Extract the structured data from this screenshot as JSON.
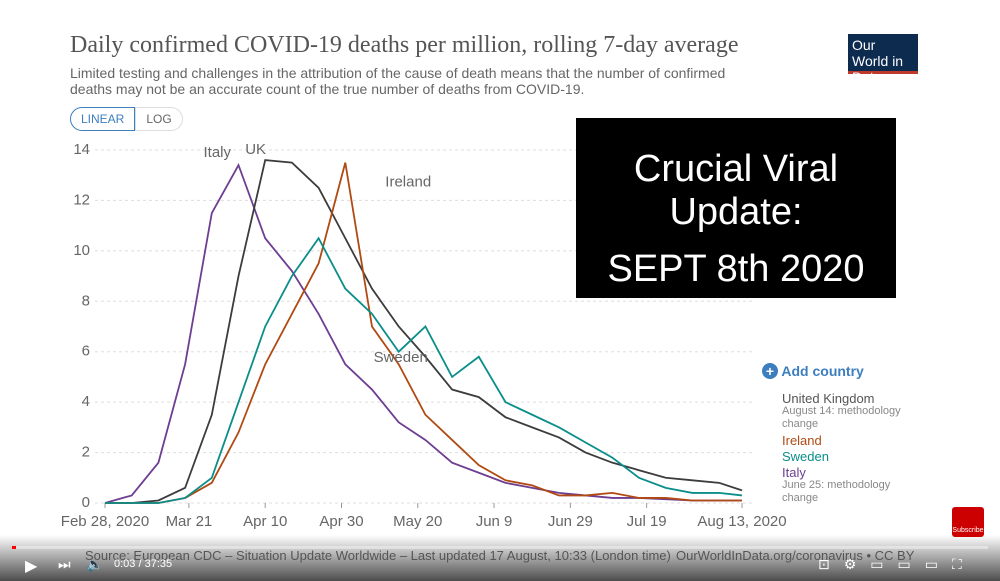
{
  "chart_data": {
    "type": "line",
    "title": "Daily confirmed COVID-19 deaths per million, rolling 7-day average",
    "subtitle": "Limited testing and challenges in the attribution of the cause of death means that the number of confirmed deaths may not be an accurate count of the true number of deaths from COVID-19.",
    "scale_buttons": [
      "LINEAR",
      "LOG"
    ],
    "add_country": "Add country",
    "x": [
      "2020-02-28",
      "2020-03-06",
      "2020-03-13",
      "2020-03-20",
      "2020-03-27",
      "2020-04-03",
      "2020-04-10",
      "2020-04-17",
      "2020-04-24",
      "2020-05-01",
      "2020-05-08",
      "2020-05-15",
      "2020-05-22",
      "2020-05-29",
      "2020-06-05",
      "2020-06-12",
      "2020-06-19",
      "2020-06-26",
      "2020-07-03",
      "2020-07-10",
      "2020-07-17",
      "2020-07-24",
      "2020-07-31",
      "2020-08-07",
      "2020-08-13"
    ],
    "series": [
      {
        "name": "Italy",
        "label": "Italy",
        "note": "June 25: methodology change",
        "color": "#6d3e91",
        "values": [
          0,
          0.3,
          1.6,
          5.5,
          11.5,
          13.4,
          10.5,
          9.2,
          7.5,
          5.5,
          4.5,
          3.2,
          2.5,
          1.6,
          1.2,
          0.8,
          0.6,
          0.4,
          0.3,
          0.2,
          0.2,
          0.15,
          0.1,
          0.1,
          0.1
        ]
      },
      {
        "name": "United Kingdom",
        "label": "UK",
        "note": "August 14: methodology change",
        "color": "#3c3c3c",
        "values": [
          0,
          0,
          0.1,
          0.6,
          3.5,
          9,
          13.6,
          13.5,
          12.5,
          10.5,
          8.5,
          7,
          5.8,
          4.5,
          4.2,
          3.4,
          3,
          2.6,
          2,
          1.6,
          1.3,
          1.0,
          0.9,
          0.8,
          0.5
        ]
      },
      {
        "name": "Ireland",
        "label": "Ireland",
        "color": "#b04a12",
        "values": [
          0,
          0,
          0,
          0.2,
          0.8,
          2.8,
          5.5,
          7.5,
          9.5,
          13.5,
          7,
          5.5,
          3.5,
          2.5,
          1.5,
          0.9,
          0.7,
          0.3,
          0.3,
          0.4,
          0.2,
          0.2,
          0.1,
          0.1,
          0.1
        ]
      },
      {
        "name": "Sweden",
        "label": "Sweden",
        "color": "#0a8e8a",
        "values": [
          0,
          0,
          0,
          0.2,
          1,
          4,
          7,
          9,
          10.5,
          8.5,
          7.5,
          6,
          7,
          5,
          5.8,
          4,
          3.5,
          3,
          2.4,
          1.8,
          1,
          0.6,
          0.4,
          0.4,
          0.3
        ]
      }
    ],
    "xlim": [
      "2020-02-28",
      "2020-08-13"
    ],
    "xticks": [
      {
        "value": "2020-02-28",
        "label": "Feb 28, 2020"
      },
      {
        "value": "2020-03-21",
        "label": "Mar 21"
      },
      {
        "value": "2020-04-10",
        "label": "Apr 10"
      },
      {
        "value": "2020-04-30",
        "label": "Apr 30"
      },
      {
        "value": "2020-05-20",
        "label": "May 20"
      },
      {
        "value": "2020-06-09",
        "label": "Jun 9"
      },
      {
        "value": "2020-06-29",
        "label": "Jun 29"
      },
      {
        "value": "2020-07-19",
        "label": "Jul 19"
      },
      {
        "value": "2020-08-13",
        "label": "Aug 13, 2020"
      }
    ],
    "ylim": [
      0,
      14
    ],
    "yticks": [
      0,
      2,
      4,
      6,
      8,
      10,
      12,
      14
    ],
    "grid": true,
    "source": "Source: European CDC – Situation Update Worldwide – Last updated 17 August, 10:33 (London time)",
    "url": "OurWorldInData.org/coronavirus • CC BY",
    "logo": "Our World in Data"
  },
  "overlay": {
    "line1": "Crucial Viral Update:",
    "line2": "SEPT 8th 2020"
  },
  "player": {
    "time": "0:03 / 37:35",
    "subscribe": "Subscribe"
  }
}
